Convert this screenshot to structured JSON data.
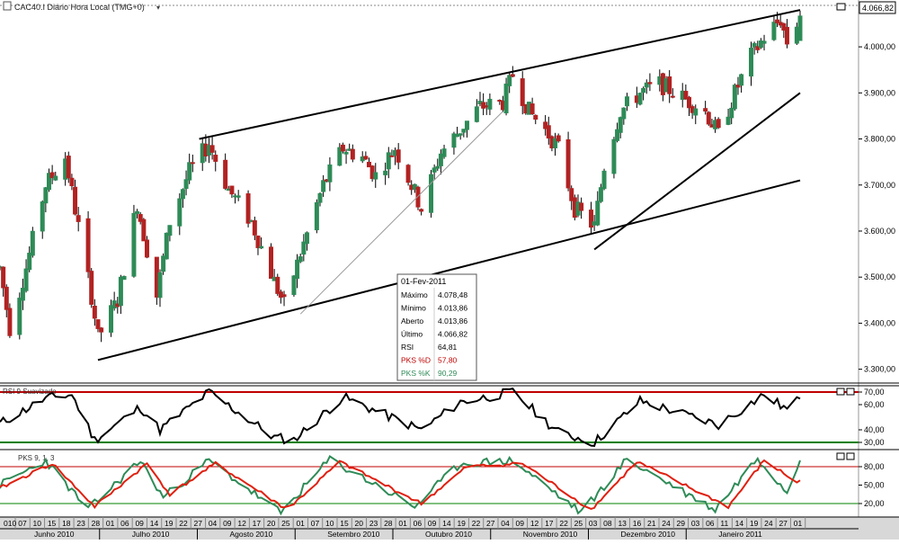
{
  "header": {
    "title": "CAC40.I Diário Hora Local (TMG+0)",
    "price_tag": "4.066,82"
  },
  "price_axis": {
    "ticks": [
      {
        "label": "4.000,00",
        "value": 4000
      },
      {
        "label": "3.900,00",
        "value": 3900
      },
      {
        "label": "3.800,00",
        "value": 3800
      },
      {
        "label": "3.700,00",
        "value": 3700
      },
      {
        "label": "3.600,00",
        "value": 3600
      },
      {
        "label": "3.500,00",
        "value": 3500
      },
      {
        "label": "3.400,00",
        "value": 3400
      },
      {
        "label": "3.300,00",
        "value": 3300
      }
    ]
  },
  "info_box": {
    "date": "01-Fev-2011",
    "rows": [
      {
        "label": "Máximo",
        "value": "4.078,48",
        "color": "#000000"
      },
      {
        "label": "Mínimo",
        "value": "4.013,86",
        "color": "#000000"
      },
      {
        "label": "Aberto",
        "value": "4.013,86",
        "color": "#000000"
      },
      {
        "label": "Último",
        "value": "4.066,82",
        "color": "#000000"
      },
      {
        "label": "RSI",
        "value": "64,81",
        "color": "#000000"
      },
      {
        "label": "PKS %D",
        "value": "57,80",
        "color": "#c00000"
      },
      {
        "label": "PKS %K",
        "value": "90,29",
        "color": "#2e8b57"
      }
    ]
  },
  "rsi_panel": {
    "title": "RSI 9 Suavizado",
    "ticks": [
      {
        "label": "70,00",
        "value": 70
      },
      {
        "label": "60,00",
        "value": 60
      },
      {
        "label": "40,00",
        "value": 40
      },
      {
        "label": "30,00",
        "value": 30
      }
    ]
  },
  "pks_panel": {
    "title": "PKS 9, 1, 3",
    "ticks": [
      {
        "label": "80,00",
        "value": 80
      },
      {
        "label": "50,00",
        "value": 50
      },
      {
        "label": "20,00",
        "value": 20
      }
    ]
  },
  "date_axis": {
    "days": [
      "010",
      "07",
      "10",
      "15",
      "18",
      "23",
      "28",
      "01",
      "06",
      "09",
      "14",
      "19",
      "22",
      "27",
      "04",
      "09",
      "12",
      "17",
      "20",
      "25",
      "01",
      "07",
      "10",
      "15",
      "20",
      "23",
      "28",
      "01",
      "06",
      "09",
      "14",
      "19",
      "22",
      "27",
      "04",
      "09",
      "12",
      "17",
      "22",
      "25",
      "03",
      "08",
      "13",
      "16",
      "21",
      "24",
      "29",
      "03",
      "06",
      "11",
      "14",
      "19",
      "24",
      "27",
      "01"
    ],
    "months": [
      "Junho 2010",
      "Julho 2010",
      "Agosto 2010",
      "Setembro 2010",
      "Outubro 2010",
      "Novembro 2010",
      "Dezembro 2010",
      "Janeiro 2011"
    ]
  },
  "colors": {
    "up_candle": "#2e8b57",
    "down_candle": "#b22222",
    "rsi_line": "#000000",
    "pks_k": "#2e8b57",
    "pks_d": "#e02010",
    "upper_band": "#c00000",
    "lower_band": "#008000"
  },
  "chart_data": {
    "type": "candlestick",
    "title": "CAC40.I Diário Hora Local (TMG+0)",
    "ylim": [
      3270,
      4090
    ],
    "x_range": [
      "2010-06-01",
      "2011-02-01"
    ],
    "close_points": [
      {
        "date": "2010-06-01",
        "close": 3520
      },
      {
        "date": "2010-06-04",
        "close": 3390
      },
      {
        "date": "2010-06-09",
        "close": 3520
      },
      {
        "date": "2010-06-15",
        "close": 3700
      },
      {
        "date": "2010-06-21",
        "close": 3760
      },
      {
        "date": "2010-06-29",
        "close": 3460
      },
      {
        "date": "2010-07-01",
        "close": 3370
      },
      {
        "date": "2010-07-07",
        "close": 3450
      },
      {
        "date": "2010-07-13",
        "close": 3660
      },
      {
        "date": "2010-07-19",
        "close": 3460
      },
      {
        "date": "2010-07-23",
        "close": 3620
      },
      {
        "date": "2010-07-29",
        "close": 3730
      },
      {
        "date": "2010-08-04",
        "close": 3790
      },
      {
        "date": "2010-08-10",
        "close": 3690
      },
      {
        "date": "2010-08-17",
        "close": 3620
      },
      {
        "date": "2010-08-24",
        "close": 3490
      },
      {
        "date": "2010-08-27",
        "close": 3440
      },
      {
        "date": "2010-09-01",
        "close": 3550
      },
      {
        "date": "2010-09-08",
        "close": 3700
      },
      {
        "date": "2010-09-14",
        "close": 3780
      },
      {
        "date": "2010-09-20",
        "close": 3760
      },
      {
        "date": "2010-09-24",
        "close": 3720
      },
      {
        "date": "2010-09-30",
        "close": 3780
      },
      {
        "date": "2010-10-05",
        "close": 3700
      },
      {
        "date": "2010-10-08",
        "close": 3650
      },
      {
        "date": "2010-10-14",
        "close": 3770
      },
      {
        "date": "2010-10-20",
        "close": 3820
      },
      {
        "date": "2010-10-26",
        "close": 3870
      },
      {
        "date": "2010-11-02",
        "close": 3880
      },
      {
        "date": "2010-11-05",
        "close": 3940
      },
      {
        "date": "2010-11-10",
        "close": 3860
      },
      {
        "date": "2010-11-15",
        "close": 3820
      },
      {
        "date": "2010-11-19",
        "close": 3780
      },
      {
        "date": "2010-11-24",
        "close": 3650
      },
      {
        "date": "2010-11-30",
        "close": 3610
      },
      {
        "date": "2010-12-03",
        "close": 3740
      },
      {
        "date": "2010-12-08",
        "close": 3860
      },
      {
        "date": "2010-12-14",
        "close": 3900
      },
      {
        "date": "2010-12-20",
        "close": 3920
      },
      {
        "date": "2010-12-27",
        "close": 3890
      },
      {
        "date": "2011-01-03",
        "close": 3860
      },
      {
        "date": "2011-01-07",
        "close": 3810
      },
      {
        "date": "2011-01-12",
        "close": 3900
      },
      {
        "date": "2011-01-17",
        "close": 3980
      },
      {
        "date": "2011-01-21",
        "close": 4020
      },
      {
        "date": "2011-01-26",
        "close": 4060
      },
      {
        "date": "2011-01-28",
        "close": 4010
      },
      {
        "date": "2011-02-01",
        "close": 4066.82
      }
    ],
    "last_candle": {
      "date": "2011-02-01",
      "open": 4013.86,
      "high": 4078.48,
      "low": 4013.86,
      "close": 4066.82
    },
    "trendlines": [
      {
        "from": {
          "date": "2010-07-01",
          "price": 3320
        },
        "to": {
          "date": "2011-02-01",
          "price": 3710
        }
      },
      {
        "from": {
          "date": "2010-08-01",
          "price": 3800
        },
        "to": {
          "date": "2011-02-01",
          "price": 4080
        }
      },
      {
        "from": {
          "date": "2010-11-30",
          "price": 3560
        },
        "to": {
          "date": "2011-02-01",
          "price": 3900
        }
      },
      {
        "from": {
          "date": "2010-09-01",
          "price": 3420
        },
        "to": {
          "date": "2010-11-02",
          "price": 3860
        }
      }
    ],
    "rsi": {
      "name": "RSI 9 Suavizado",
      "ylim": [
        25,
        75
      ],
      "upper": 70,
      "lower": 30,
      "points": [
        {
          "date": "2010-06-01",
          "value": 45
        },
        {
          "date": "2010-06-15",
          "value": 65
        },
        {
          "date": "2010-06-23",
          "value": 68
        },
        {
          "date": "2010-06-30",
          "value": 32
        },
        {
          "date": "2010-07-14",
          "value": 58
        },
        {
          "date": "2010-07-20",
          "value": 40
        },
        {
          "date": "2010-08-04",
          "value": 70
        },
        {
          "date": "2010-08-24",
          "value": 34
        },
        {
          "date": "2010-08-30",
          "value": 32
        },
        {
          "date": "2010-09-14",
          "value": 66
        },
        {
          "date": "2010-10-08",
          "value": 40
        },
        {
          "date": "2010-10-20",
          "value": 62
        },
        {
          "date": "2010-11-05",
          "value": 70
        },
        {
          "date": "2010-11-19",
          "value": 38
        },
        {
          "date": "2010-11-30",
          "value": 30
        },
        {
          "date": "2010-12-14",
          "value": 63
        },
        {
          "date": "2011-01-07",
          "value": 44
        },
        {
          "date": "2011-01-21",
          "value": 68
        },
        {
          "date": "2011-01-28",
          "value": 56
        },
        {
          "date": "2011-02-01",
          "value": 64.81
        }
      ]
    },
    "pks": {
      "name": "PKS 9, 1, 3",
      "ylim": [
        0,
        100
      ],
      "upper": 80,
      "lower": 20,
      "series": [
        {
          "name": "PKS %K",
          "points": [
            {
              "date": "2010-06-01",
              "value": 50
            },
            {
              "date": "2010-06-15",
              "value": 90
            },
            {
              "date": "2010-06-28",
              "value": 10
            },
            {
              "date": "2010-07-14",
              "value": 90
            },
            {
              "date": "2010-07-21",
              "value": 30
            },
            {
              "date": "2010-08-04",
              "value": 90
            },
            {
              "date": "2010-08-26",
              "value": 5
            },
            {
              "date": "2010-09-10",
              "value": 92
            },
            {
              "date": "2010-10-06",
              "value": 15
            },
            {
              "date": "2010-10-20",
              "value": 85
            },
            {
              "date": "2010-11-05",
              "value": 90
            },
            {
              "date": "2010-11-26",
              "value": 5
            },
            {
              "date": "2010-12-10",
              "value": 92
            },
            {
              "date": "2011-01-06",
              "value": 10
            },
            {
              "date": "2011-01-19",
              "value": 95
            },
            {
              "date": "2011-01-28",
              "value": 40
            },
            {
              "date": "2011-02-01",
              "value": 90.29
            }
          ]
        },
        {
          "name": "PKS %D",
          "points": [
            {
              "date": "2010-06-01",
              "value": 45
            },
            {
              "date": "2010-06-17",
              "value": 85
            },
            {
              "date": "2010-06-30",
              "value": 15
            },
            {
              "date": "2010-07-16",
              "value": 85
            },
            {
              "date": "2010-07-23",
              "value": 35
            },
            {
              "date": "2010-08-06",
              "value": 85
            },
            {
              "date": "2010-08-28",
              "value": 10
            },
            {
              "date": "2010-09-13",
              "value": 88
            },
            {
              "date": "2010-10-08",
              "value": 20
            },
            {
              "date": "2010-10-22",
              "value": 80
            },
            {
              "date": "2010-11-08",
              "value": 85
            },
            {
              "date": "2010-11-29",
              "value": 10
            },
            {
              "date": "2010-12-13",
              "value": 88
            },
            {
              "date": "2011-01-10",
              "value": 15
            },
            {
              "date": "2011-01-21",
              "value": 90
            },
            {
              "date": "2011-01-31",
              "value": 55
            },
            {
              "date": "2011-02-01",
              "value": 57.8
            }
          ]
        }
      ]
    }
  }
}
